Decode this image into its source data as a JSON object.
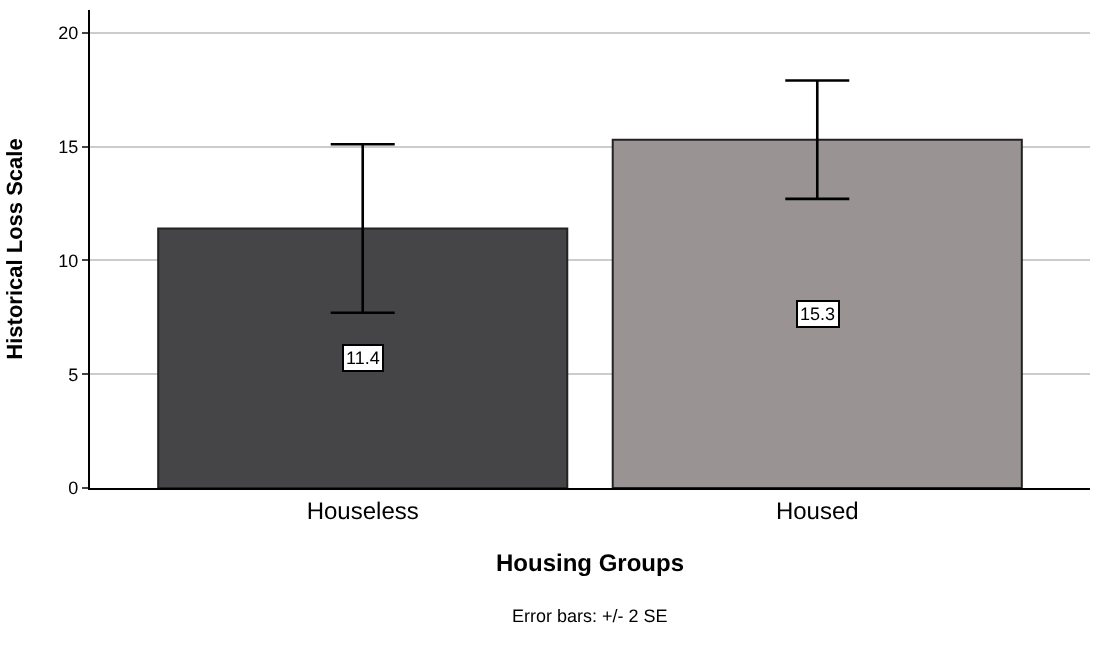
{
  "chart_data": {
    "type": "bar",
    "xlabel": "Housing Groups",
    "ylabel": "Historical Loss Scale",
    "categories": [
      "Houseless",
      "Housed"
    ],
    "values": [
      11.4,
      15.3
    ],
    "colors": [
      "#454547",
      "#999393"
    ],
    "errors": [
      3.7,
      2.6
    ],
    "data_labels": true,
    "ylim": [
      0,
      21
    ],
    "yticks": [
      0,
      5,
      10,
      15,
      20
    ],
    "grid": "y",
    "annotations": [
      "Error bars: +/- 2 SE"
    ]
  }
}
